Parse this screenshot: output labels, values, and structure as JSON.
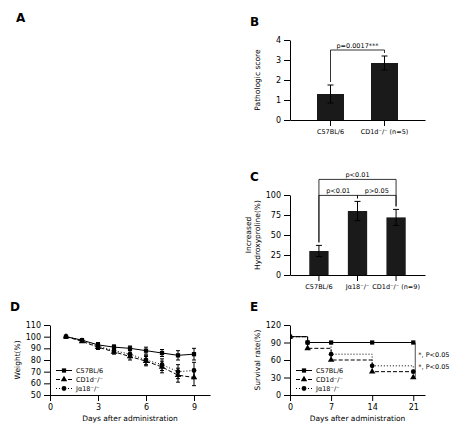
{
  "chart_data": [
    {
      "type": "image",
      "title": "A"
    },
    {
      "type": "bar",
      "title": "B",
      "categories": [
        "C57BL/6",
        "CD1d⁻/⁻ (n=5)"
      ],
      "values": [
        1.3,
        2.85
      ],
      "errors": [
        0.45,
        0.35
      ],
      "ylabel": "Pathologic score",
      "ylim": [
        0,
        4
      ],
      "yticks": [
        0,
        1,
        2,
        3,
        4
      ],
      "color": "#1a1a1a",
      "annotations": [
        {
          "text": "p=0.0017***",
          "between": [
            0,
            1
          ]
        }
      ]
    },
    {
      "type": "bar",
      "title": "C",
      "categories": [
        "C57BL/6",
        "Jα18⁻/⁻",
        "CD1d⁻/⁻ (n=9)"
      ],
      "values": [
        30,
        80,
        72
      ],
      "errors": [
        7,
        12,
        10
      ],
      "ylabel": "Increased\nHydroxyproline(%)",
      "ylim": [
        0,
        100
      ],
      "yticks": [
        0,
        25,
        50,
        75,
        100
      ],
      "color": "#1a1a1a",
      "annotations": [
        {
          "text": "p<0.01",
          "between": [
            0,
            1
          ]
        },
        {
          "text": "p<0.01",
          "between": [
            0,
            2
          ]
        },
        {
          "text": "p>0.05",
          "between": [
            1,
            2
          ]
        }
      ]
    },
    {
      "type": "line",
      "title": "D",
      "x": [
        1,
        2,
        3,
        4,
        5,
        6,
        7,
        8,
        9
      ],
      "series": [
        {
          "name": "C57BL/6",
          "color": "black",
          "marker": "square",
          "line_style": "solid",
          "values": [
            100,
            97,
            93,
            91,
            90,
            88,
            86,
            84,
            85
          ],
          "errors": [
            0,
            1,
            2,
            2,
            2,
            3,
            3,
            4,
            5
          ]
        },
        {
          "name": "CD1d⁻/⁻",
          "color": "black",
          "marker": "triangle",
          "line_style": "dashed",
          "values": [
            100,
            96,
            91,
            87,
            83,
            79,
            74,
            67,
            65
          ],
          "errors": [
            0,
            1,
            2,
            2,
            3,
            4,
            5,
            6,
            7
          ]
        },
        {
          "name": "Jα18⁻/⁻",
          "color": "black",
          "marker": "circle",
          "line_style": "dotted",
          "values": [
            100,
            97,
            92,
            88,
            85,
            80,
            76,
            70,
            71
          ],
          "errors": [
            0,
            1,
            2,
            2,
            3,
            4,
            5,
            6,
            7
          ]
        }
      ],
      "xlabel": "Days after administration",
      "ylabel": "Weight(%)",
      "xlim": [
        0,
        10
      ],
      "xticks": [
        0,
        3,
        6,
        9
      ],
      "ylim": [
        50,
        110
      ],
      "yticks": [
        50,
        60,
        70,
        80,
        90,
        100,
        110
      ],
      "legend": "lower left"
    },
    {
      "type": "step",
      "title": "E",
      "x": [
        0,
        3,
        7,
        14,
        21
      ],
      "series": [
        {
          "name": "C57BL/6",
          "color": "black",
          "marker": "square",
          "line_style": "solid",
          "values": [
            100,
            90,
            90,
            90,
            90
          ]
        },
        {
          "name": "CD1d⁻/⁻",
          "color": "black",
          "marker": "triangle",
          "line_style": "dashed",
          "values": [
            100,
            80,
            60,
            40,
            30
          ]
        },
        {
          "name": "Jα18⁻/⁻",
          "color": "black",
          "marker": "circle",
          "line_style": "dotted",
          "values": [
            100,
            90,
            70,
            50,
            40
          ]
        }
      ],
      "xlabel": "Days after administration",
      "ylabel": "Survival rate(%)",
      "xlim": [
        0,
        23
      ],
      "xticks": [
        0,
        7,
        14,
        21
      ],
      "ylim": [
        0,
        120
      ],
      "yticks": [
        0,
        30,
        60,
        90,
        120
      ],
      "legend": "lower left",
      "annotations": [
        {
          "text": "*, P<0.05",
          "x": 21,
          "y": 65
        },
        {
          "text": "*, P<0.05",
          "x": 21,
          "y": 45
        }
      ]
    }
  ]
}
